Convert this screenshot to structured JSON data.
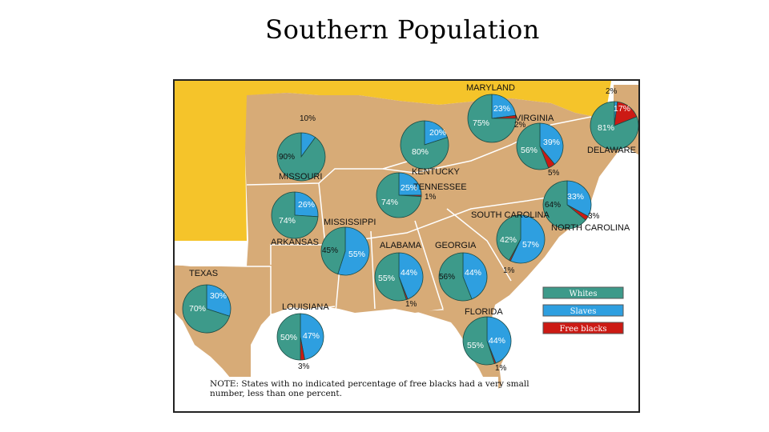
{
  "page": {
    "title": "Southern Population"
  },
  "colors": {
    "whites": "#3d9a8a",
    "slaves": "#2e9fe0",
    "free_blacks": "#cc1a14",
    "land": "#d7ab77",
    "water": "#ffffff",
    "north": "#f5c42a"
  },
  "legend": {
    "items": [
      {
        "label": "Whites",
        "color": "#3d9a8a",
        "text_color": "#ffffff"
      },
      {
        "label": "Slaves",
        "color": "#2e9fe0",
        "text_color": "#ffffff"
      },
      {
        "label": "Free blacks",
        "color": "#cc1a14",
        "text_color": "#ffffff"
      }
    ]
  },
  "note": {
    "line1": "NOTE: States with no indicated percentage of free blacks had a very small",
    "line2": "number, less than one percent."
  },
  "chart_data": {
    "type": "pie",
    "series_names": [
      "Whites",
      "Slaves",
      "Free blacks"
    ],
    "states": [
      {
        "name": "MARYLAND",
        "whites": 75,
        "slaves": 23,
        "free_blacks": 2,
        "labels": [
          "75%",
          "23%",
          "2%"
        ]
      },
      {
        "name": "VIRGINIA",
        "whites": 56,
        "slaves": 39,
        "free_blacks": 5,
        "labels": [
          "56%",
          "39%",
          "5%"
        ]
      },
      {
        "name": "DELAWARE",
        "whites": 81,
        "slaves": 2,
        "free_blacks": 17,
        "labels": [
          "81%",
          "2%",
          "17%"
        ]
      },
      {
        "name": "KENTUCKY",
        "whites": 80,
        "slaves": 20,
        "free_blacks": 0,
        "labels": [
          "80%",
          "20%"
        ]
      },
      {
        "name": "MISSOURI",
        "whites": 90,
        "slaves": 10,
        "free_blacks": 0,
        "labels": [
          "90%",
          "10%"
        ]
      },
      {
        "name": "TENNESSEE",
        "whites": 74,
        "slaves": 25,
        "free_blacks": 1,
        "labels": [
          "74%",
          "25%",
          "1%"
        ]
      },
      {
        "name": "NORTH CAROLINA",
        "whites": 64,
        "slaves": 33,
        "free_blacks": 3,
        "labels": [
          "64%",
          "33%",
          "3%"
        ]
      },
      {
        "name": "SOUTH CAROLINA",
        "whites": 42,
        "slaves": 57,
        "free_blacks": 1,
        "labels": [
          "42%",
          "57%",
          "1%"
        ]
      },
      {
        "name": "ARKANSAS",
        "whites": 74,
        "slaves": 26,
        "free_blacks": 0,
        "labels": [
          "74%",
          "26%"
        ]
      },
      {
        "name": "MISSISSIPPI",
        "whites": 45,
        "slaves": 55,
        "free_blacks": 0,
        "labels": [
          "45%",
          "55%"
        ]
      },
      {
        "name": "ALABAMA",
        "whites": 55,
        "slaves": 44,
        "free_blacks": 1,
        "labels": [
          "55%",
          "44%",
          "1%"
        ]
      },
      {
        "name": "GEORGIA",
        "whites": 56,
        "slaves": 44,
        "free_blacks": 0,
        "labels": [
          "56%",
          "44%"
        ]
      },
      {
        "name": "TEXAS",
        "whites": 70,
        "slaves": 30,
        "free_blacks": 0,
        "labels": [
          "70%",
          "30%"
        ]
      },
      {
        "name": "LOUISIANA",
        "whites": 50,
        "slaves": 47,
        "free_blacks": 3,
        "labels": [
          "50%",
          "47%",
          "3%"
        ]
      },
      {
        "name": "FLORIDA",
        "whites": 55,
        "slaves": 44,
        "free_blacks": 1,
        "labels": [
          "55%",
          "44%",
          "1%"
        ]
      }
    ]
  }
}
